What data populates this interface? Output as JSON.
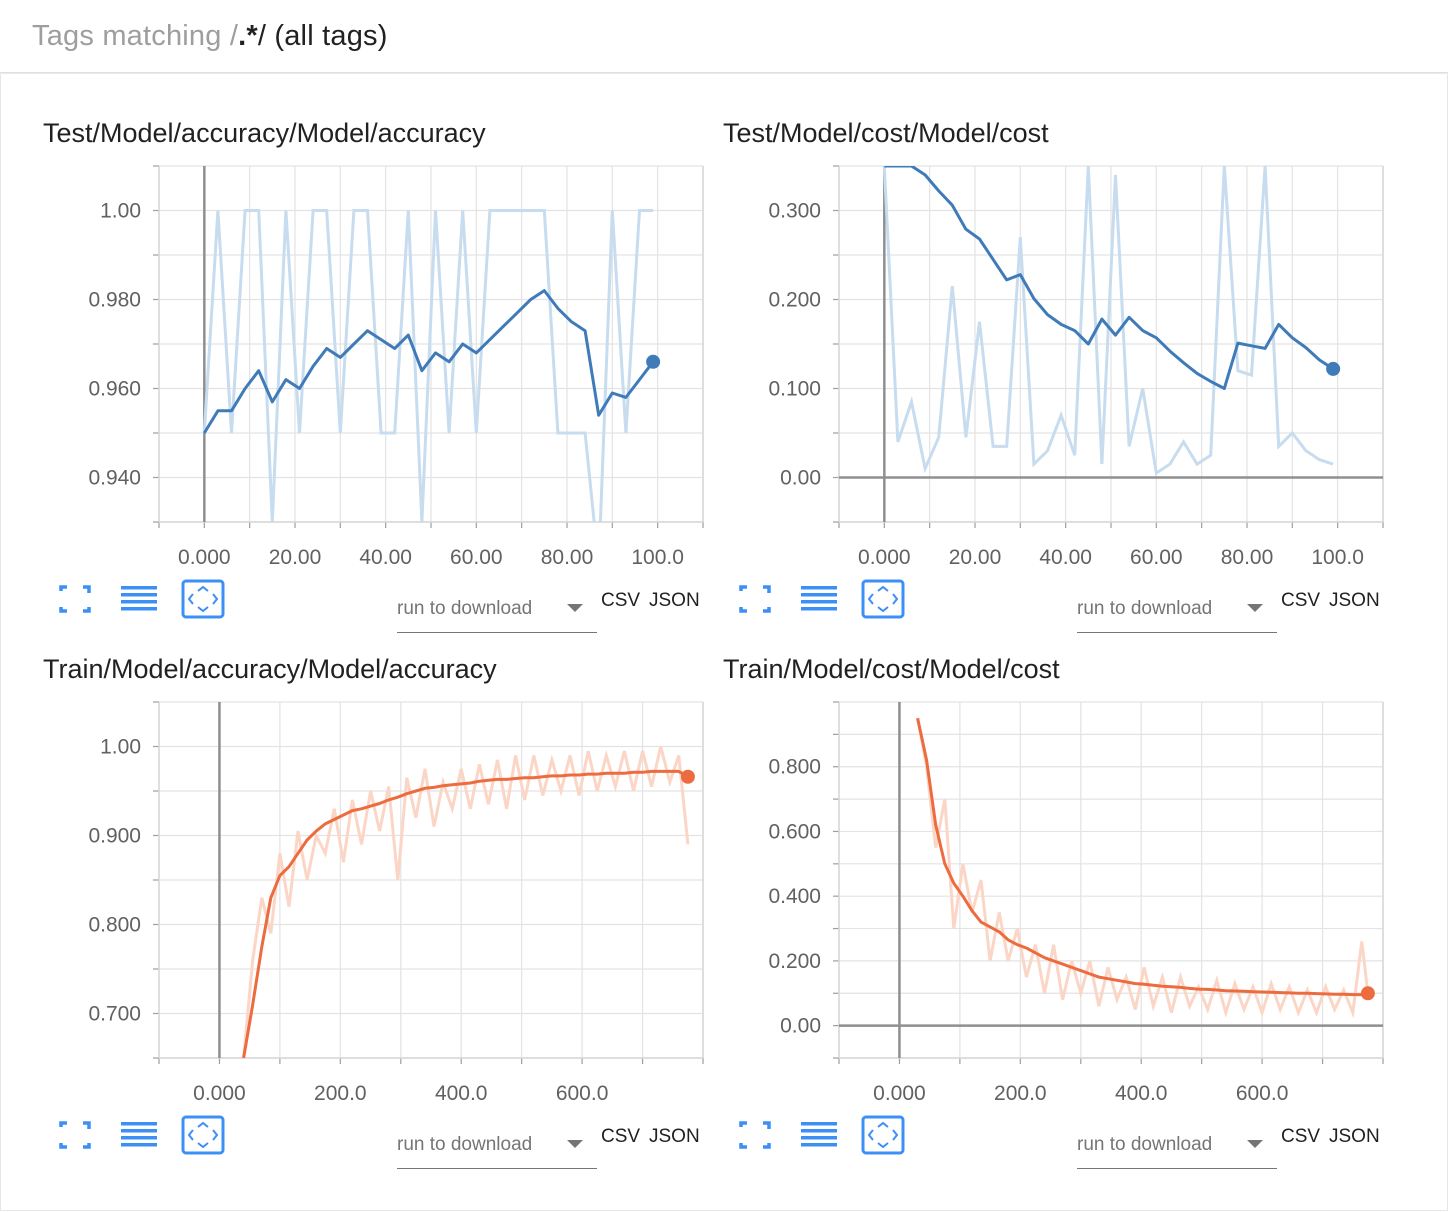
{
  "header": {
    "prefix": "Tags matching /",
    "pattern": ".*",
    "suffix": "/ (all tags)"
  },
  "controls": {
    "run_placeholder": "run to download",
    "csv": "CSV",
    "json": "JSON"
  },
  "colors": {
    "blue": "#3f7bb8",
    "blue_light": "#c7dcee",
    "orange": "#ec6b3f",
    "orange_light": "#fbd6c6",
    "grid": "#e3e3e3",
    "axis": "#9e9e9e"
  },
  "icons": [
    "fullscreen-icon",
    "data-table-icon",
    "fit-domain-icon"
  ],
  "chart_data": [
    {
      "type": "line",
      "title": "Test/Model/accuracy/Model/accuracy",
      "xlim": [
        -10,
        110
      ],
      "ylim": [
        0.93,
        1.01
      ],
      "x_ticks": [
        "0.000",
        "20.00",
        "40.00",
        "60.00",
        "80.00",
        "100.0"
      ],
      "x_tick_values": [
        0,
        20,
        40,
        60,
        80,
        100
      ],
      "y_ticks": [
        "0.940",
        "0.960",
        "0.980",
        "1.00"
      ],
      "y_tick_values": [
        0.94,
        0.96,
        0.98,
        1.0
      ],
      "color": "blue",
      "series": [
        {
          "role": "raw",
          "x": [
            0,
            3,
            6,
            9,
            12,
            15,
            18,
            21,
            24,
            27,
            30,
            33,
            36,
            39,
            42,
            45,
            48,
            51,
            54,
            57,
            60,
            63,
            66,
            69,
            72,
            75,
            78,
            81,
            84,
            87,
            90,
            93,
            96,
            99
          ],
          "y": [
            0.95,
            1.0,
            0.95,
            1.0,
            1.0,
            0.93,
            1.0,
            0.95,
            1.0,
            1.0,
            0.95,
            1.0,
            1.0,
            0.95,
            0.95,
            1.0,
            0.93,
            1.0,
            0.95,
            1.0,
            0.95,
            1.0,
            1.0,
            1.0,
            1.0,
            1.0,
            0.95,
            0.95,
            0.95,
            0.92,
            1.0,
            0.95,
            1.0,
            1.0
          ]
        },
        {
          "role": "smoothed",
          "x": [
            0,
            3,
            6,
            9,
            12,
            15,
            18,
            21,
            24,
            27,
            30,
            33,
            36,
            39,
            42,
            45,
            48,
            51,
            54,
            57,
            60,
            63,
            66,
            69,
            72,
            75,
            78,
            81,
            84,
            87,
            90,
            93,
            96,
            99
          ],
          "y": [
            0.95,
            0.955,
            0.955,
            0.96,
            0.964,
            0.957,
            0.962,
            0.96,
            0.965,
            0.969,
            0.967,
            0.97,
            0.973,
            0.971,
            0.969,
            0.972,
            0.964,
            0.968,
            0.966,
            0.97,
            0.968,
            0.971,
            0.974,
            0.977,
            0.98,
            0.982,
            0.978,
            0.975,
            0.973,
            0.954,
            0.959,
            0.958,
            0.962,
            0.966
          ]
        }
      ]
    },
    {
      "type": "line",
      "title": "Test/Model/cost/Model/cost",
      "xlim": [
        -10,
        110
      ],
      "ylim": [
        -0.05,
        0.35
      ],
      "x_ticks": [
        "0.000",
        "20.00",
        "40.00",
        "60.00",
        "80.00",
        "100.0"
      ],
      "x_tick_values": [
        0,
        20,
        40,
        60,
        80,
        100
      ],
      "y_ticks": [
        "0.00",
        "0.100",
        "0.200",
        "0.300"
      ],
      "y_tick_values": [
        0.0,
        0.1,
        0.2,
        0.3
      ],
      "color": "blue",
      "series": [
        {
          "role": "raw",
          "x": [
            0,
            3,
            6,
            9,
            12,
            15,
            18,
            21,
            24,
            27,
            30,
            33,
            36,
            39,
            42,
            45,
            48,
            51,
            54,
            57,
            60,
            63,
            66,
            69,
            72,
            75,
            78,
            81,
            84,
            87,
            90,
            93,
            96,
            99
          ],
          "y": [
            0.35,
            0.04,
            0.085,
            0.01,
            0.045,
            0.215,
            0.045,
            0.175,
            0.035,
            0.035,
            0.27,
            0.015,
            0.03,
            0.07,
            0.025,
            0.35,
            0.015,
            0.34,
            0.035,
            0.1,
            0.005,
            0.015,
            0.04,
            0.015,
            0.025,
            0.35,
            0.12,
            0.115,
            0.35,
            0.035,
            0.05,
            0.03,
            0.02,
            0.015
          ]
        },
        {
          "role": "smoothed",
          "x": [
            0,
            3,
            6,
            9,
            12,
            15,
            18,
            21,
            24,
            27,
            30,
            33,
            36,
            39,
            42,
            45,
            48,
            51,
            54,
            57,
            60,
            63,
            66,
            69,
            72,
            75,
            78,
            81,
            84,
            87,
            90,
            93,
            96,
            99
          ],
          "y": [
            0.35,
            0.35,
            0.35,
            0.34,
            0.322,
            0.306,
            0.279,
            0.268,
            0.245,
            0.222,
            0.228,
            0.201,
            0.183,
            0.172,
            0.165,
            0.15,
            0.178,
            0.16,
            0.18,
            0.165,
            0.157,
            0.142,
            0.129,
            0.117,
            0.108,
            0.1,
            0.151,
            0.148,
            0.145,
            0.172,
            0.157,
            0.146,
            0.132,
            0.122
          ]
        }
      ]
    },
    {
      "type": "line",
      "title": "Train/Model/accuracy/Model/accuracy",
      "xlim": [
        -100,
        800
      ],
      "ylim": [
        0.65,
        1.05
      ],
      "x_ticks": [
        "0.000",
        "200.0",
        "400.0",
        "600.0"
      ],
      "x_tick_values": [
        0,
        200,
        400,
        600
      ],
      "y_ticks": [
        "0.700",
        "0.800",
        "0.900",
        "1.00"
      ],
      "y_tick_values": [
        0.7,
        0.8,
        0.9,
        1.0
      ],
      "color": "orange",
      "series": [
        {
          "role": "raw",
          "x": [
            40,
            55,
            70,
            85,
            100,
            115,
            130,
            145,
            160,
            175,
            190,
            205,
            220,
            235,
            250,
            265,
            280,
            295,
            310,
            325,
            340,
            355,
            370,
            385,
            400,
            415,
            430,
            445,
            460,
            475,
            490,
            505,
            520,
            535,
            550,
            565,
            580,
            595,
            610,
            625,
            640,
            655,
            670,
            685,
            700,
            715,
            730,
            745,
            760,
            775
          ],
          "y": [
            0.65,
            0.76,
            0.83,
            0.79,
            0.88,
            0.82,
            0.905,
            0.85,
            0.9,
            0.88,
            0.93,
            0.87,
            0.94,
            0.89,
            0.95,
            0.905,
            0.955,
            0.85,
            0.965,
            0.92,
            0.975,
            0.91,
            0.96,
            0.93,
            0.975,
            0.93,
            0.98,
            0.935,
            0.985,
            0.93,
            0.99,
            0.94,
            0.99,
            0.945,
            0.985,
            0.95,
            0.99,
            0.945,
            0.995,
            0.95,
            0.99,
            0.955,
            0.995,
            0.95,
            0.995,
            0.955,
            1.0,
            0.96,
            0.99,
            0.89
          ]
        },
        {
          "role": "smoothed",
          "x": [
            40,
            55,
            70,
            85,
            100,
            115,
            130,
            145,
            160,
            175,
            190,
            205,
            220,
            235,
            250,
            265,
            280,
            295,
            310,
            325,
            340,
            355,
            370,
            385,
            400,
            415,
            430,
            445,
            460,
            475,
            490,
            505,
            520,
            535,
            550,
            565,
            580,
            595,
            610,
            625,
            640,
            655,
            670,
            685,
            700,
            715,
            730,
            745,
            760,
            775
          ],
          "y": [
            0.65,
            0.71,
            0.775,
            0.83,
            0.855,
            0.865,
            0.88,
            0.895,
            0.905,
            0.913,
            0.918,
            0.923,
            0.928,
            0.93,
            0.933,
            0.936,
            0.94,
            0.943,
            0.947,
            0.95,
            0.953,
            0.954,
            0.956,
            0.957,
            0.958,
            0.959,
            0.961,
            0.962,
            0.963,
            0.963,
            0.964,
            0.965,
            0.965,
            0.966,
            0.967,
            0.967,
            0.968,
            0.968,
            0.969,
            0.969,
            0.97,
            0.97,
            0.97,
            0.971,
            0.971,
            0.972,
            0.972,
            0.972,
            0.972,
            0.966
          ]
        }
      ]
    },
    {
      "type": "line",
      "title": "Train/Model/cost/Model/cost",
      "xlim": [
        -100,
        800
      ],
      "ylim": [
        -0.1,
        1.0
      ],
      "x_ticks": [
        "0.000",
        "200.0",
        "400.0",
        "600.0"
      ],
      "x_tick_values": [
        0,
        200,
        400,
        600
      ],
      "y_ticks": [
        "0.00",
        "0.200",
        "0.400",
        "0.600",
        "0.800"
      ],
      "y_tick_values": [
        0.0,
        0.2,
        0.4,
        0.6,
        0.8
      ],
      "color": "orange",
      "series": [
        {
          "role": "raw",
          "x": [
            30,
            45,
            60,
            75,
            90,
            105,
            120,
            135,
            150,
            165,
            180,
            195,
            210,
            225,
            240,
            255,
            270,
            285,
            300,
            315,
            330,
            345,
            360,
            375,
            390,
            405,
            420,
            435,
            450,
            465,
            480,
            495,
            510,
            525,
            540,
            555,
            570,
            585,
            600,
            615,
            630,
            645,
            660,
            675,
            690,
            705,
            720,
            735,
            750,
            765,
            775
          ],
          "y": [
            0.95,
            0.8,
            0.55,
            0.7,
            0.3,
            0.5,
            0.35,
            0.45,
            0.2,
            0.35,
            0.2,
            0.3,
            0.15,
            0.25,
            0.1,
            0.25,
            0.08,
            0.2,
            0.1,
            0.2,
            0.06,
            0.18,
            0.08,
            0.15,
            0.05,
            0.18,
            0.06,
            0.15,
            0.04,
            0.15,
            0.06,
            0.12,
            0.05,
            0.14,
            0.04,
            0.13,
            0.05,
            0.12,
            0.04,
            0.13,
            0.05,
            0.12,
            0.04,
            0.11,
            0.04,
            0.12,
            0.05,
            0.11,
            0.04,
            0.26,
            0.1
          ]
        },
        {
          "role": "smoothed",
          "x": [
            30,
            45,
            60,
            75,
            90,
            105,
            120,
            135,
            150,
            165,
            180,
            195,
            210,
            225,
            240,
            255,
            270,
            285,
            300,
            315,
            330,
            345,
            360,
            375,
            390,
            405,
            420,
            435,
            450,
            465,
            480,
            495,
            510,
            525,
            540,
            555,
            570,
            585,
            600,
            615,
            630,
            645,
            660,
            675,
            690,
            705,
            720,
            735,
            750,
            765,
            775
          ],
          "y": [
            0.95,
            0.82,
            0.62,
            0.5,
            0.44,
            0.4,
            0.355,
            0.32,
            0.305,
            0.29,
            0.265,
            0.25,
            0.24,
            0.225,
            0.21,
            0.2,
            0.19,
            0.18,
            0.17,
            0.16,
            0.15,
            0.145,
            0.14,
            0.135,
            0.13,
            0.128,
            0.125,
            0.122,
            0.12,
            0.118,
            0.115,
            0.113,
            0.112,
            0.11,
            0.108,
            0.107,
            0.106,
            0.105,
            0.104,
            0.103,
            0.102,
            0.101,
            0.1,
            0.1,
            0.099,
            0.098,
            0.097,
            0.097,
            0.096,
            0.096,
            0.1
          ]
        }
      ]
    }
  ]
}
